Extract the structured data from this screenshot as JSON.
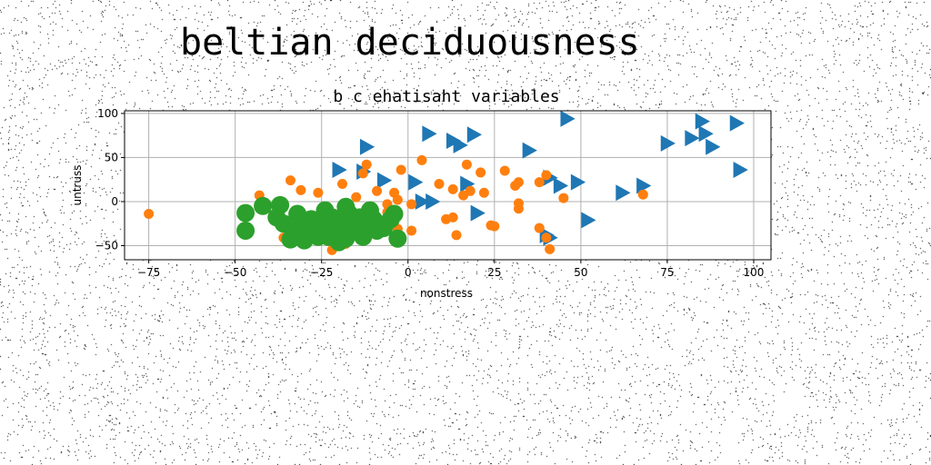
{
  "figure": {
    "suptitle": "beltian deciduousness"
  },
  "chart_data": {
    "type": "scatter",
    "title": "b c ehatisaht variables",
    "xlabel": "nonstress",
    "ylabel": "untruss",
    "xlim": [
      -82,
      105
    ],
    "ylim": [
      -66,
      103
    ],
    "xticks": [
      -75,
      -50,
      -25,
      0,
      25,
      50,
      75,
      100
    ],
    "yticks": [
      -50,
      0,
      50,
      100
    ],
    "grid": true,
    "legend": "none",
    "series": [
      {
        "marker": "triangle-right",
        "color": "#1f77b4",
        "points": [
          [
            46,
            94
          ],
          [
            85,
            91
          ],
          [
            95,
            89
          ],
          [
            6,
            77
          ],
          [
            13,
            69
          ],
          [
            19,
            76
          ],
          [
            15,
            64
          ],
          [
            -12,
            62
          ],
          [
            35,
            58
          ],
          [
            75,
            66
          ],
          [
            82,
            72
          ],
          [
            86,
            77
          ],
          [
            88,
            62
          ],
          [
            96,
            36
          ],
          [
            -20,
            36
          ],
          [
            -13,
            34
          ],
          [
            -7,
            24
          ],
          [
            2,
            22
          ],
          [
            4,
            0
          ],
          [
            7,
            0
          ],
          [
            17,
            20
          ],
          [
            20,
            -13
          ],
          [
            41,
            27
          ],
          [
            44,
            18
          ],
          [
            49,
            22
          ],
          [
            62,
            10
          ],
          [
            68,
            18
          ],
          [
            52,
            -21
          ],
          [
            40,
            -38
          ],
          [
            41,
            -41
          ]
        ]
      },
      {
        "marker": "circle",
        "color": "#ff7f0e",
        "points": [
          [
            -75,
            -14
          ],
          [
            -43,
            7
          ],
          [
            -34,
            24
          ],
          [
            -31,
            13
          ],
          [
            -26,
            10
          ],
          [
            -19,
            20
          ],
          [
            -15,
            5
          ],
          [
            -13,
            32
          ],
          [
            -12,
            42
          ],
          [
            -9,
            12
          ],
          [
            -4,
            10
          ],
          [
            -3,
            2
          ],
          [
            -6,
            -3
          ],
          [
            -2,
            36
          ],
          [
            -6,
            -12
          ],
          [
            -6,
            -24
          ],
          [
            -3,
            -31
          ],
          [
            1,
            -33
          ],
          [
            1,
            -3
          ],
          [
            4,
            47
          ],
          [
            9,
            20
          ],
          [
            11,
            -20
          ],
          [
            13,
            14
          ],
          [
            13,
            -18
          ],
          [
            14,
            -38
          ],
          [
            16,
            7
          ],
          [
            17,
            42
          ],
          [
            18,
            12
          ],
          [
            21,
            33
          ],
          [
            22,
            10
          ],
          [
            24,
            -27
          ],
          [
            25,
            -28
          ],
          [
            28,
            35
          ],
          [
            31,
            18
          ],
          [
            32,
            22
          ],
          [
            32,
            -2
          ],
          [
            32,
            -8
          ],
          [
            38,
            -30
          ],
          [
            38,
            22
          ],
          [
            40,
            30
          ],
          [
            40,
            -41
          ],
          [
            41,
            -54
          ],
          [
            45,
            4
          ],
          [
            68,
            8
          ],
          [
            -22,
            -55
          ],
          [
            -36,
            -41
          ],
          [
            -18,
            -48
          ]
        ]
      },
      {
        "marker": "circle-large",
        "color": "#2ca02c",
        "points": [
          [
            -47,
            -13
          ],
          [
            -47,
            -33
          ],
          [
            -42,
            -5
          ],
          [
            -38,
            -18
          ],
          [
            -37,
            -4
          ],
          [
            -36,
            -25
          ],
          [
            -34,
            -43
          ],
          [
            -33,
            -34
          ],
          [
            -32,
            -14
          ],
          [
            -31,
            -27
          ],
          [
            -30,
            -44
          ],
          [
            -29,
            -37
          ],
          [
            -28,
            -20
          ],
          [
            -27,
            -33
          ],
          [
            -26,
            -40
          ],
          [
            -25,
            -24
          ],
          [
            -24,
            -30
          ],
          [
            -23,
            -40
          ],
          [
            -22,
            -18
          ],
          [
            -21,
            -28
          ],
          [
            -20,
            -35
          ],
          [
            -19,
            -25
          ],
          [
            -18,
            -42
          ],
          [
            -17,
            -14
          ],
          [
            -16,
            -23
          ],
          [
            -15,
            -34
          ],
          [
            -14,
            -18
          ],
          [
            -13,
            -40
          ],
          [
            -12,
            -29
          ],
          [
            -11,
            -10
          ],
          [
            -10,
            -20
          ],
          [
            -9,
            -33
          ],
          [
            -8,
            -26
          ],
          [
            -7,
            -30
          ],
          [
            -5,
            -20
          ],
          [
            -4,
            -14
          ],
          [
            -3,
            -42
          ],
          [
            -20,
            -46
          ],
          [
            -24,
            -10
          ],
          [
            -18,
            -6
          ]
        ]
      }
    ]
  }
}
